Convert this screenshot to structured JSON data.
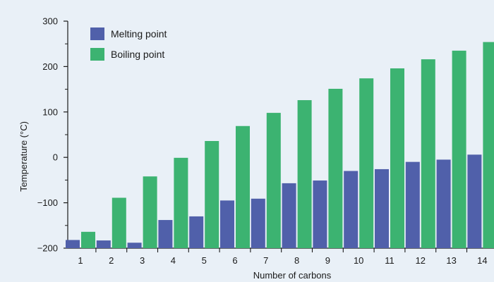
{
  "chart_data": {
    "type": "bar",
    "title": "",
    "xlabel": "Number of carbons",
    "ylabel": "Temperature (°C)",
    "ylim": [
      -200,
      300
    ],
    "yticks": [
      -200,
      -100,
      0,
      100,
      200,
      300
    ],
    "grid": false,
    "legend_position": "top-left",
    "categories": [
      "1",
      "2",
      "3",
      "4",
      "5",
      "6",
      "7",
      "8",
      "9",
      "10",
      "11",
      "12",
      "13",
      "14"
    ],
    "series": [
      {
        "name": "Melting point",
        "color": "#5060aa",
        "values": [
          -182,
          -183,
          -188,
          -138,
          -130,
          -95,
          -91,
          -57,
          -51,
          -30,
          -26,
          -10,
          -5,
          6
        ]
      },
      {
        "name": "Boiling point",
        "color": "#3cb371",
        "values": [
          -164,
          -89,
          -42,
          -1,
          36,
          69,
          98,
          126,
          151,
          174,
          196,
          216,
          235,
          254
        ]
      }
    ]
  }
}
